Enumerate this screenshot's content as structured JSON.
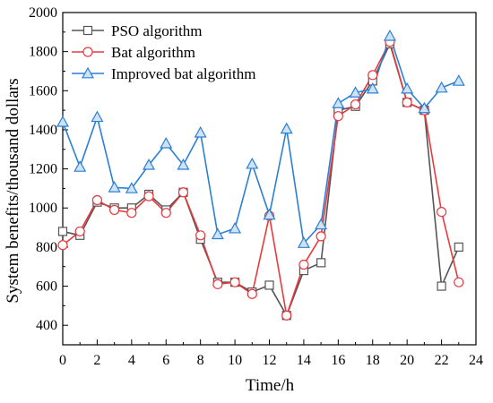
{
  "chart_data": {
    "type": "line",
    "title": "",
    "xlabel": "Time/h",
    "ylabel": "System benefits/thousand dollars",
    "xlim": [
      0,
      24
    ],
    "ylim": [
      300,
      2000
    ],
    "xticks": [
      0,
      2,
      4,
      6,
      8,
      10,
      12,
      14,
      16,
      18,
      20,
      22,
      24
    ],
    "yticks": [
      400,
      600,
      800,
      1000,
      1200,
      1400,
      1600,
      1800,
      2000
    ],
    "grid": false,
    "legend_position": "top-left",
    "x": [
      0,
      1,
      2,
      3,
      4,
      5,
      6,
      7,
      8,
      9,
      10,
      11,
      12,
      13,
      14,
      15,
      16,
      17,
      18,
      19,
      20,
      21,
      22,
      23
    ],
    "series": [
      {
        "name": "PSO algorithm",
        "color": "#555555",
        "marker": "square",
        "values": [
          880,
          860,
          1030,
          1000,
          1000,
          1070,
          990,
          1080,
          840,
          620,
          620,
          570,
          605,
          450,
          680,
          720,
          1500,
          1520,
          1650,
          1840,
          1540,
          1500,
          600,
          800
        ]
      },
      {
        "name": "Bat algorithm",
        "color": "#e8393f",
        "marker": "circle",
        "values": [
          810,
          880,
          1040,
          990,
          975,
          1060,
          975,
          1080,
          860,
          610,
          620,
          560,
          960,
          450,
          710,
          855,
          1470,
          1530,
          1680,
          1850,
          1540,
          1500,
          980,
          620
        ]
      },
      {
        "name": "Improved bat algorithm",
        "color": "#2d7fd4",
        "marker": "triangle",
        "values": [
          1440,
          1210,
          1465,
          1105,
          1100,
          1220,
          1330,
          1220,
          1385,
          865,
          895,
          1225,
          965,
          1405,
          820,
          915,
          1535,
          1590,
          1610,
          1880,
          1610,
          1510,
          1615,
          1650
        ]
      }
    ]
  }
}
